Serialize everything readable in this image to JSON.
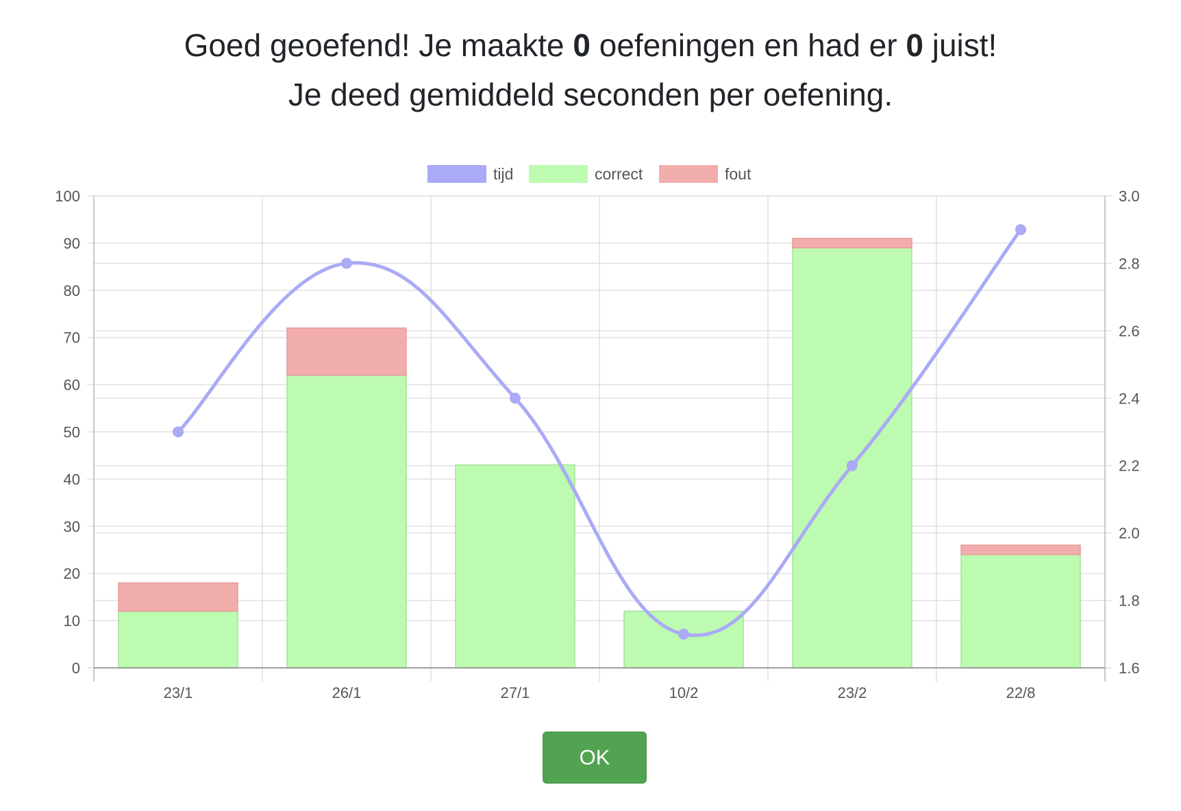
{
  "summary": {
    "line1_prefix": "Goed geoefend! Je maakte ",
    "exercises": "0",
    "line1_middle": " oefeningen en had er ",
    "correct": "0",
    "line1_suffix": " juist!",
    "line2": "Je deed gemiddeld seconden per oefening."
  },
  "ok_label": "OK",
  "colors": {
    "tijd": "#aaaaf7",
    "correct": "#bdfbb0",
    "correct_border": "#a7e09b",
    "fout": "#f2aeac",
    "fout_border": "#e59b99",
    "grid": "#e0e0e0",
    "axis": "#888888",
    "tick_text": "#555555",
    "ok_button": "#51a351"
  },
  "chart_data": {
    "type": "bar",
    "stacked": true,
    "categories": [
      "23/1",
      "26/1",
      "27/1",
      "10/2",
      "23/2",
      "22/8"
    ],
    "series": [
      {
        "name": "correct",
        "type": "bar",
        "axis": "left",
        "values": [
          12,
          62,
          43,
          12,
          89,
          24
        ]
      },
      {
        "name": "fout",
        "type": "bar",
        "axis": "left",
        "values": [
          6,
          10,
          0,
          0,
          2,
          2
        ]
      },
      {
        "name": "tijd",
        "type": "line",
        "axis": "right",
        "smooth": true,
        "values": [
          2.3,
          2.8,
          2.4,
          1.7,
          2.2,
          2.9
        ]
      }
    ],
    "legend_order": [
      "tijd",
      "correct",
      "fout"
    ],
    "legend_position": "top",
    "y_left": {
      "min": 0,
      "max": 100,
      "ticks": [
        "0",
        "10",
        "20",
        "30",
        "40",
        "50",
        "60",
        "70",
        "80",
        "90",
        "100"
      ]
    },
    "y_right": {
      "min": 1.6,
      "max": 3.0,
      "ticks": [
        "1.6",
        "1.8",
        "2.0",
        "2.2",
        "2.4",
        "2.6",
        "2.8",
        "3.0"
      ]
    },
    "grid": true
  }
}
